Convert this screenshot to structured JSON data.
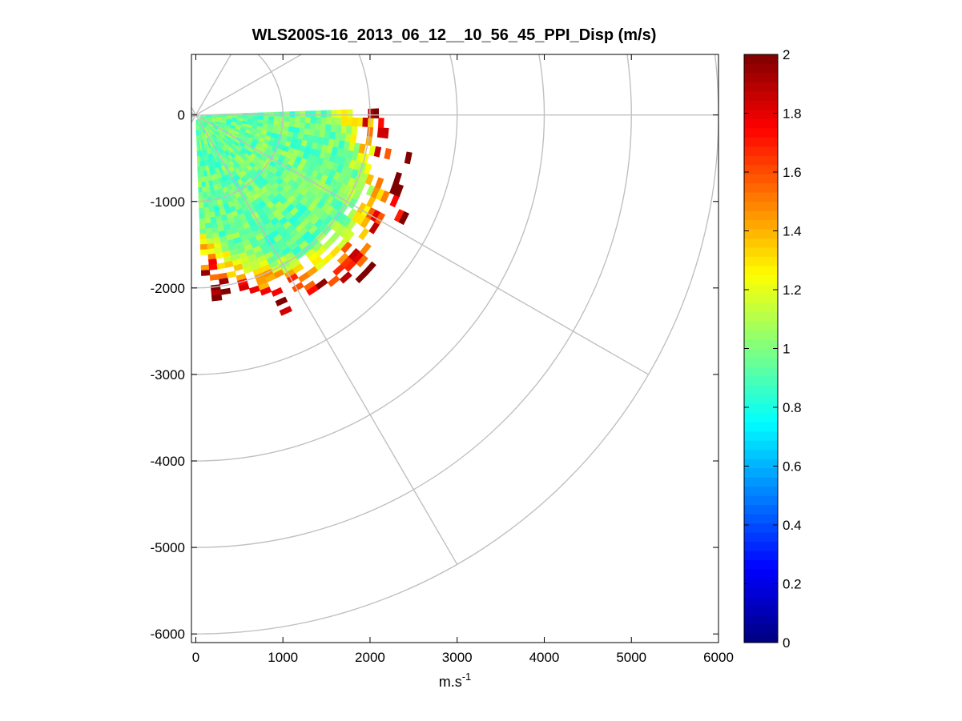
{
  "chart_data": {
    "type": "heatmap",
    "subtype": "polar PPI scan",
    "title": "WLS200S-16_2013_06_12__10_56_45_PPI_Disp (m/s)",
    "xlabel_base": "m.s",
    "xlabel_exponent": "-1",
    "ylabel": "",
    "xlim": [
      -50,
      6000
    ],
    "ylim": [
      -6100,
      700
    ],
    "xticks": [
      0,
      1000,
      2000,
      3000,
      4000,
      5000,
      6000
    ],
    "xtick_labels": [
      "0",
      "1000",
      "2000",
      "3000",
      "4000",
      "5000",
      "6000"
    ],
    "yticks": [
      0,
      -1000,
      -2000,
      -3000,
      -4000,
      -5000,
      -6000
    ],
    "ytick_labels": [
      "0",
      "-1000",
      "-2000",
      "-3000",
      "-4000",
      "-5000",
      "-6000"
    ],
    "polar_grid": {
      "range_rings_m": [
        1000,
        2000,
        3000,
        4000,
        5000,
        6000
      ],
      "spoke_angles_deg": [
        -60,
        -30,
        0,
        30,
        60
      ]
    },
    "scan": {
      "azimuth_range_deg": [
        -88,
        2
      ],
      "max_range_m": 2800,
      "colored_quantity": "Disp (m/s)"
    },
    "colorbar": {
      "colormap": "jet",
      "clim": [
        0,
        2
      ],
      "ticks": [
        0,
        0.2,
        0.4,
        0.6,
        0.8,
        1,
        1.2,
        1.4,
        1.6,
        1.8,
        2
      ],
      "tick_labels": [
        "0",
        "0.2",
        "0.4",
        "0.6",
        "0.8",
        "1",
        "1.2",
        "1.4",
        "1.6",
        "1.8",
        "2"
      ]
    }
  }
}
